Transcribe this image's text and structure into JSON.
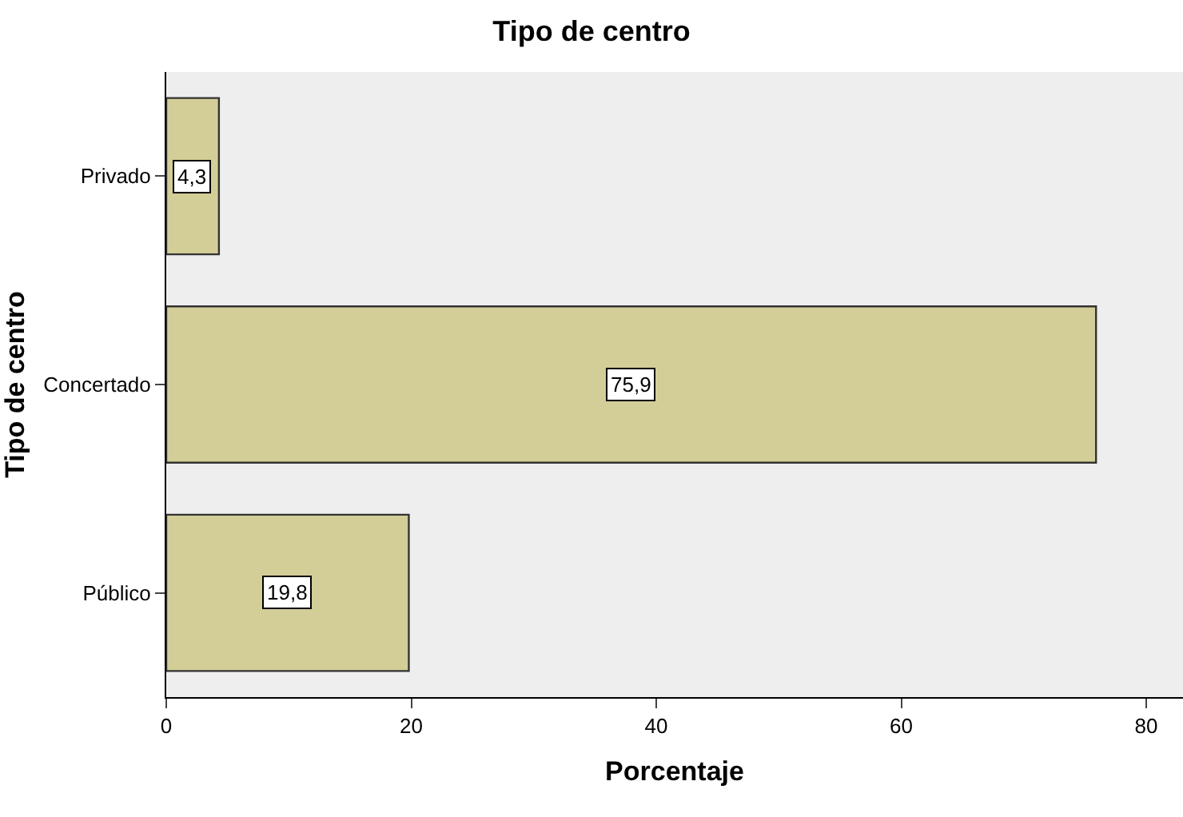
{
  "chart_data": {
    "type": "bar",
    "orientation": "horizontal",
    "title": "Tipo de centro",
    "xlabel": "Porcentaje",
    "ylabel": "Tipo de centro",
    "categories": [
      "Privado",
      "Concertado",
      "Público"
    ],
    "values": [
      4.3,
      75.9,
      19.8
    ],
    "value_labels": [
      "4,3",
      "75,9",
      "19,8"
    ],
    "color": "#d3ce98",
    "xlim": [
      0,
      83
    ],
    "xticks": [
      0,
      20,
      40,
      60,
      80
    ],
    "grid": false,
    "legend": false
  }
}
